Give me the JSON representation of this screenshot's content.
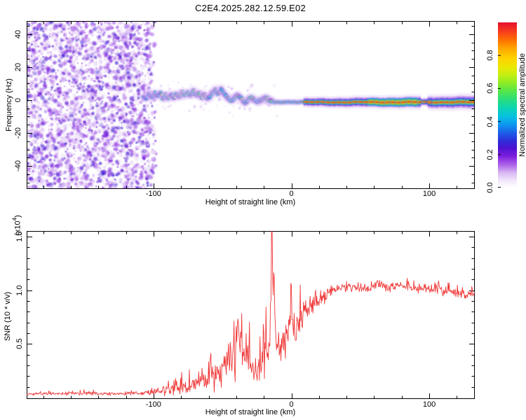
{
  "title": "C2E4.2025.282.12.59.E02",
  "spectrogram": {
    "ylabel": "Frequency (Hz)",
    "xlabel": "Height of straight line (km)",
    "x_tick_labels": [
      "-100",
      "0",
      "100"
    ],
    "x_tick_values": [
      -100,
      0,
      100
    ],
    "x_minor_values": [
      -180,
      -160,
      -140,
      -120,
      -80,
      -60,
      -40,
      -20,
      20,
      40,
      60,
      80,
      120
    ],
    "y_tick_labels": [
      "40",
      "20",
      "0",
      "-20",
      "-40"
    ],
    "y_tick_values": [
      40,
      20,
      0,
      -20,
      -40
    ],
    "y_minor_values": [
      -50,
      -45,
      -35,
      -30,
      -25,
      -15,
      -10,
      -5,
      5,
      10,
      15,
      25,
      30,
      35,
      45
    ]
  },
  "snr": {
    "ylabel": "SNR (10 * v/v)",
    "scale_prefix": "(x10",
    "scale_exp": "4",
    "scale_suffix": ")",
    "xlabel": "Height of straight line (km)",
    "color": "#ef3838",
    "x_tick_labels": [
      "-100",
      "0",
      "100"
    ],
    "x_tick_values": [
      -100,
      0,
      100
    ],
    "x_minor_values": [
      -180,
      -160,
      -140,
      -120,
      -80,
      -60,
      -40,
      -20,
      20,
      40,
      60,
      80,
      120
    ],
    "y_tick_labels": [
      "0.5",
      "1.0",
      "1.5"
    ],
    "y_tick_values": [
      0.5,
      1.0,
      1.5
    ],
    "y_minor_values": [
      0.1,
      0.2,
      0.3,
      0.4,
      0.6,
      0.7,
      0.8,
      0.9,
      1.1,
      1.2,
      1.3,
      1.4
    ],
    "y_range": [
      -0.013,
      1.552
    ]
  },
  "colorbar": {
    "label": "Normalized spectral amplitude",
    "tick_labels": [
      "0.0",
      "0.2",
      "0.4",
      "0.6",
      "0.8"
    ],
    "tick_values": [
      0,
      0.2,
      0.4,
      0.6,
      0.8
    ],
    "stops": [
      {
        "v": 0.0,
        "c": "#ffffff"
      },
      {
        "v": 0.04,
        "c": "#f3e8fb"
      },
      {
        "v": 0.09,
        "c": "#d9b8f3"
      },
      {
        "v": 0.14,
        "c": "#ab5fe9"
      },
      {
        "v": 0.19,
        "c": "#7d1fdd"
      },
      {
        "v": 0.24,
        "c": "#4e12d2"
      },
      {
        "v": 0.28,
        "c": "#2f2bd6"
      },
      {
        "v": 0.33,
        "c": "#1e5ce8"
      },
      {
        "v": 0.38,
        "c": "#0d96f0"
      },
      {
        "v": 0.43,
        "c": "#07c0e2"
      },
      {
        "v": 0.48,
        "c": "#0bd4b4"
      },
      {
        "v": 0.53,
        "c": "#27dd80"
      },
      {
        "v": 0.58,
        "c": "#50e54d"
      },
      {
        "v": 0.63,
        "c": "#8aec29"
      },
      {
        "v": 0.68,
        "c": "#c2ef13"
      },
      {
        "v": 0.73,
        "c": "#ece703"
      },
      {
        "v": 0.78,
        "c": "#fed300"
      },
      {
        "v": 0.84,
        "c": "#ffa900"
      },
      {
        "v": 0.89,
        "c": "#ff7300"
      },
      {
        "v": 0.94,
        "c": "#f7411a"
      },
      {
        "v": 1.0,
        "c": "#e60f2e"
      }
    ]
  },
  "chart_data": [
    {
      "type": "heatmap",
      "title": "C2E4.2025.282.12.59.E02",
      "xlabel": "Height of straight line (km)",
      "ylabel": "Frequency (Hz)",
      "colorbar_label": "Normalized spectral amplitude",
      "x_range": [
        -192,
        133
      ],
      "y_range": [
        -54,
        48
      ],
      "noise_region": {
        "x_start": -192,
        "x_end": -104,
        "fade_to": -97,
        "amplitude_range": [
          0.03,
          0.27
        ],
        "description": "broadband purple noise speckle filling all frequencies"
      },
      "scatter_speckles": {
        "x": [
          -100,
          -10
        ],
        "count": 85,
        "amplitude_range": [
          0.04,
          0.12
        ]
      },
      "ridge": [
        [
          -107,
          2.5,
          0.4
        ],
        [
          -105,
          1.0,
          0.5
        ],
        [
          -103,
          3.5,
          0.5
        ],
        [
          -101,
          1.5,
          0.55
        ],
        [
          -99,
          4.0,
          0.5
        ],
        [
          -97,
          2.0,
          0.55
        ],
        [
          -95,
          4.5,
          0.6
        ],
        [
          -93,
          1.0,
          0.55
        ],
        [
          -91,
          3.0,
          0.6
        ],
        [
          -89,
          0.5,
          0.55
        ],
        [
          -87,
          3.5,
          0.6
        ],
        [
          -85,
          1.5,
          0.62
        ],
        [
          -83,
          4.0,
          0.58
        ],
        [
          -81,
          2.0,
          0.62
        ],
        [
          -79,
          4.5,
          0.6
        ],
        [
          -77,
          2.5,
          0.64
        ],
        [
          -75,
          5.0,
          0.6
        ],
        [
          -73,
          3.0,
          0.62
        ],
        [
          -71,
          5.5,
          0.58
        ],
        [
          -69,
          2.5,
          0.6
        ],
        [
          -67,
          4.0,
          0.64
        ],
        [
          -65,
          1.5,
          0.6
        ],
        [
          -63,
          3.0,
          0.62
        ],
        [
          -61,
          1.0,
          0.6
        ],
        [
          -59,
          2.5,
          0.64
        ],
        [
          -57,
          4.5,
          0.66
        ],
        [
          -55,
          6.0,
          0.62
        ],
        [
          -53,
          3.5,
          0.6
        ],
        [
          -51,
          6.5,
          0.66
        ],
        [
          -49,
          4.0,
          0.62
        ],
        [
          -47,
          2.0,
          0.6
        ],
        [
          -45,
          0.5,
          0.62
        ],
        [
          -43,
          -0.5,
          0.6
        ],
        [
          -41,
          1.5,
          0.64
        ],
        [
          -39,
          3.0,
          0.62
        ],
        [
          -37,
          1.0,
          0.6
        ],
        [
          -35,
          -0.5,
          0.62
        ],
        [
          -33,
          -1.5,
          0.6
        ],
        [
          -31,
          0.5,
          0.62
        ],
        [
          -29,
          1.5,
          0.64
        ],
        [
          -27,
          0.0,
          0.66
        ],
        [
          -25,
          -1.5,
          0.62
        ],
        [
          -23,
          -0.5,
          0.66
        ],
        [
          -21,
          0.5,
          0.7
        ],
        [
          -19,
          1.5,
          0.72
        ],
        [
          -17,
          0.5,
          0.78
        ],
        [
          -15,
          -0.5,
          0.85
        ],
        [
          -13.5,
          -1.0,
          0.9
        ]
      ],
      "signal_dots": {
        "x": [
          -13.5,
          9
        ],
        "freq": -1.2,
        "amplitude": 0.93
      },
      "band": {
        "x": [
          9,
          133
        ],
        "freq": -1.3,
        "core_amplitude": 0.965,
        "halo_growth": 0.55,
        "green_patch": [
          55,
          92
        ],
        "pinch": [
          94,
          99
        ],
        "blob_at": 100
      }
    },
    {
      "type": "line",
      "name": "SNR",
      "xlabel": "Height of straight line (km)",
      "ylabel": "SNR (10 * v/v) x10^4",
      "x_range": [
        -192,
        133
      ],
      "y_clip": 1.56,
      "anchors": [
        [
          -192,
          0.035,
          0.018
        ],
        [
          -170,
          0.037,
          0.02
        ],
        [
          -150,
          0.04,
          0.022
        ],
        [
          -128,
          0.036,
          0.02
        ],
        [
          -110,
          0.038,
          0.022
        ],
        [
          -101,
          0.045,
          0.03
        ],
        [
          -95,
          0.055,
          0.04
        ],
        [
          -89,
          0.07,
          0.06
        ],
        [
          -84,
          0.09,
          0.09
        ],
        [
          -80,
          0.11,
          0.1
        ],
        [
          -76,
          0.1,
          0.09
        ],
        [
          -72,
          0.12,
          0.1
        ],
        [
          -68,
          0.13,
          0.11
        ],
        [
          -64,
          0.15,
          0.13
        ],
        [
          -60,
          0.17,
          0.15
        ],
        [
          -56,
          0.2,
          0.17
        ],
        [
          -52,
          0.24,
          0.2
        ],
        [
          -48,
          0.3,
          0.26
        ],
        [
          -45,
          0.36,
          0.3
        ],
        [
          -42,
          0.44,
          0.33
        ],
        [
          -39,
          0.47,
          0.36
        ],
        [
          -36,
          0.52,
          0.38
        ],
        [
          -33,
          0.46,
          0.34
        ],
        [
          -30,
          0.32,
          0.24
        ],
        [
          -27,
          0.22,
          0.16
        ],
        [
          -24,
          0.26,
          0.2
        ],
        [
          -21,
          0.34,
          0.26
        ],
        [
          -18,
          0.42,
          0.32
        ],
        [
          -16,
          0.55,
          0.42
        ],
        [
          -15,
          0.8,
          0.55
        ],
        [
          -14.2,
          1.56,
          0.02
        ],
        [
          -13.5,
          0.9,
          0.4
        ],
        [
          -12.6,
          0.95,
          0.3
        ],
        [
          -11.6,
          0.65,
          0.3
        ],
        [
          -10.4,
          0.5,
          0.28
        ],
        [
          -9,
          0.62,
          0.3
        ],
        [
          -7.6,
          0.48,
          0.26
        ],
        [
          -6.2,
          0.58,
          0.26
        ],
        [
          -4.8,
          0.52,
          0.26
        ],
        [
          -3.4,
          0.62,
          0.28
        ],
        [
          -2,
          0.56,
          0.28
        ],
        [
          -0.6,
          0.66,
          0.26
        ],
        [
          1,
          0.72,
          0.24
        ],
        [
          2.6,
          0.6,
          0.28
        ],
        [
          4.2,
          0.72,
          0.26
        ],
        [
          6,
          0.66,
          0.24
        ],
        [
          8,
          0.76,
          0.2
        ],
        [
          10,
          0.8,
          0.16
        ],
        [
          13,
          0.84,
          0.13
        ],
        [
          16,
          0.87,
          0.11
        ],
        [
          20,
          0.91,
          0.09
        ],
        [
          25,
          0.95,
          0.08
        ],
        [
          30,
          1.0,
          0.065
        ],
        [
          38,
          1.02,
          0.06
        ],
        [
          46,
          1.04,
          0.06
        ],
        [
          55,
          1.03,
          0.06
        ],
        [
          64,
          1.05,
          0.062
        ],
        [
          72,
          1.03,
          0.06
        ],
        [
          80,
          1.04,
          0.06
        ],
        [
          88,
          1.02,
          0.06
        ],
        [
          96,
          1.03,
          0.058
        ],
        [
          104,
          1.0,
          0.058
        ],
        [
          112,
          0.99,
          0.055
        ],
        [
          120,
          0.97,
          0.05
        ],
        [
          126,
          0.96,
          0.05
        ],
        [
          133,
          0.97,
          0.045
        ]
      ]
    }
  ]
}
